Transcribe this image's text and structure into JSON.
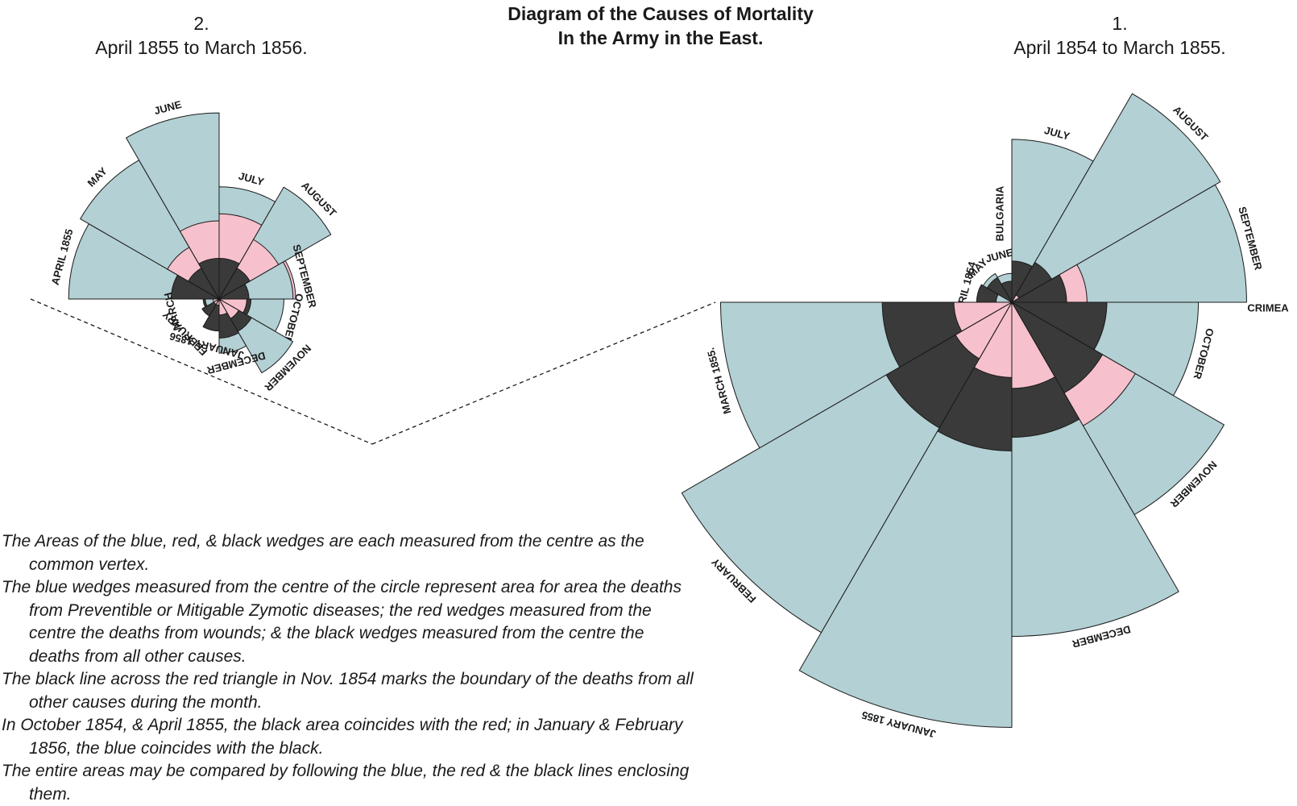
{
  "title_line1": "Diagram of the Causes of Mortality",
  "title_line2": "In the Army in the East.",
  "panels": {
    "second": {
      "number": "2.",
      "period": "April 1855 to March 1856."
    },
    "first": {
      "number": "1.",
      "period": "April 1854 to March 1855."
    }
  },
  "legend": [
    "The Areas of the blue, red, & black wedges are each measured from the centre as the common vertex.",
    "The blue wedges measured from the centre of the circle represent area for area the deaths from Preventible or Mitigable Zymotic diseases; the red wedges measured from the centre the deaths from wounds; & the black wedges measured from the centre the deaths from all other causes.",
    "The black line across the red triangle in Nov. 1854 marks the boundary of the deaths from all other causes during the month.",
    "In October 1854, & April 1855, the black area coincides with the red; in January & February 1856, the blue coincides with the black.",
    "The entire areas may be compared by following the blue, the red & the black lines enclosing them."
  ],
  "colors": {
    "zymotic": "#b3d0d4",
    "wounds": "#f6c1cc",
    "other": "#3a3a3a",
    "line": "#1a1a1a"
  },
  "chart_data": [
    {
      "type": "polar-area",
      "title": "April 1854 to March 1855.",
      "categories": [
        "APRIL 1854",
        "MAY",
        "JUNE",
        "JULY",
        "AUGUST",
        "SEPTEMBER",
        "OCTOBER",
        "NOVEMBER",
        "DECEMBER",
        "JANUARY 1855",
        "FEBRUARY",
        "MARCH 1855."
      ],
      "series": [
        {
          "name": "zymotic",
          "values": [
            1.4,
            6.2,
            4.7,
            150,
            328,
            312,
            197,
            340,
            631,
            1022,
            822,
            480
          ]
        },
        {
          "name": "wounds",
          "values": [
            0,
            0,
            0,
            0,
            0.4,
            32,
            51,
            115,
            42,
            32,
            24,
            19
          ]
        },
        {
          "name": "other",
          "values": [
            7,
            4.6,
            2.5,
            9.6,
            12,
            17,
            51,
            62,
            103,
            125,
            119,
            95
          ]
        }
      ],
      "annotations": [
        "BULGARIA",
        "CRIMEA"
      ]
    },
    {
      "type": "polar-area",
      "title": "April 1855 to March 1856.",
      "categories": [
        "APRIL 1855",
        "MAY",
        "JUNE",
        "JULY",
        "AUGUST",
        "SEPTEMBER",
        "OCTOBER",
        "NOVEMBER",
        "DECEMBER",
        "JANUARY 1856",
        "FEBRUARY",
        "MARCH"
      ],
      "series": [
        {
          "name": "zymotic",
          "values": [
            178,
            202,
            272,
            99,
            131,
            43,
            33,
            57,
            23,
            8,
            3,
            1.5
          ]
        },
        {
          "name": "wounds",
          "values": [
            18,
            28,
            48,
            57,
            37,
            46,
            6,
            4,
            2,
            0.3,
            0.3,
            0.3
          ]
        },
        {
          "name": "other",
          "values": [
            18,
            10,
            13,
            13,
            10,
            7,
            8,
            11,
            12,
            8,
            3,
            2
          ]
        }
      ]
    }
  ]
}
